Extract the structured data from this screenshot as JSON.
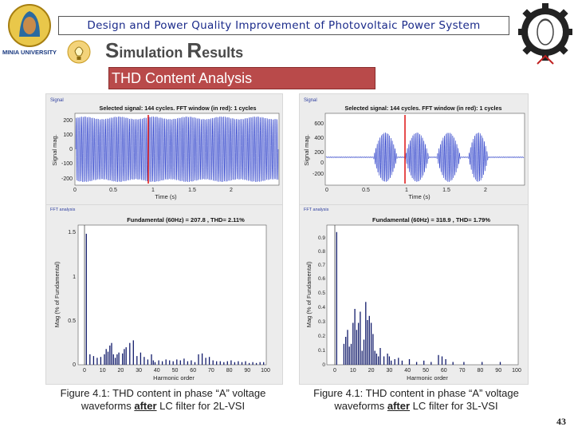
{
  "header": {
    "banner_text": "Design and Power Quality Improvement of Photovoltaic Power System",
    "university_logo_text": "MINIA UNIVERSITY",
    "section_title_cap1": "S",
    "section_title_rest1": "imulation ",
    "section_title_cap2": "R",
    "section_title_rest2": "esults",
    "subsection": "THD Content Analysis"
  },
  "colors": {
    "accent_red": "#b94a4a",
    "banner_text": "#1a2a8a",
    "signal_blue": "#2438c8",
    "fft_navy": "#101a6a"
  },
  "figures": [
    {
      "signal_panel_label": "Signal",
      "signal_title": "Selected signal: 144 cycles. FFT window (in red): 1 cycles",
      "signal_ylabel": "Signal mag.",
      "signal_xlabel": "Time (s)",
      "signal_yticks": [
        "200",
        "100",
        "0",
        "-100",
        "-200"
      ],
      "signal_xticks": [
        "0",
        "0.5",
        "1",
        "1.5",
        "2"
      ],
      "fft_panel_label": "FFT analysis",
      "fft_title": "Fundamental (60Hz) = 207.8 , THD= 2.11%",
      "fft_ylabel": "Mag (% of Fundamental)",
      "fft_xlabel": "Harmonic order",
      "fft_yticks": [
        "1.5",
        "1",
        "0.5",
        "0"
      ],
      "fft_xticks": [
        "0",
        "10",
        "20",
        "30",
        "40",
        "50",
        "60",
        "70",
        "80",
        "90",
        "100"
      ],
      "caption_line1": "Figure 4.1: THD content in phase “A” voltage",
      "caption_pre": "waveforms ",
      "caption_emph": "after",
      "caption_post": " LC filter for 2L-VSI"
    },
    {
      "signal_panel_label": "Signal",
      "signal_title": "Selected signal: 144 cycles. FFT window (in red): 1 cycles",
      "signal_ylabel": "Signal mag.",
      "signal_xlabel": "Time (s)",
      "signal_yticks": [
        "600",
        "400",
        "200",
        "0",
        "-200"
      ],
      "signal_xticks": [
        "0",
        "0.5",
        "1",
        "1.5",
        "2"
      ],
      "fft_panel_label": "FFT analysis",
      "fft_title": "Fundamental (60Hz) = 318.9 , THD= 1.79%",
      "fft_ylabel": "Mag (% of Fundamental)",
      "fft_xlabel": "Harmonic order",
      "fft_yticks": [
        "0.9",
        "0.8",
        "0.7",
        "0.6",
        "0.5",
        "0.4",
        "0.3",
        "0.2",
        "0.1",
        "0"
      ],
      "fft_xticks": [
        "0",
        "10",
        "20",
        "30",
        "40",
        "50",
        "60",
        "70",
        "80",
        "90",
        "100"
      ],
      "caption_line1": "Figure 4.1: THD content in phase “A” voltage",
      "caption_pre": "waveforms ",
      "caption_emph": "after",
      "caption_post": " LC filter for 3L-VSI"
    }
  ],
  "page_number": "43"
}
